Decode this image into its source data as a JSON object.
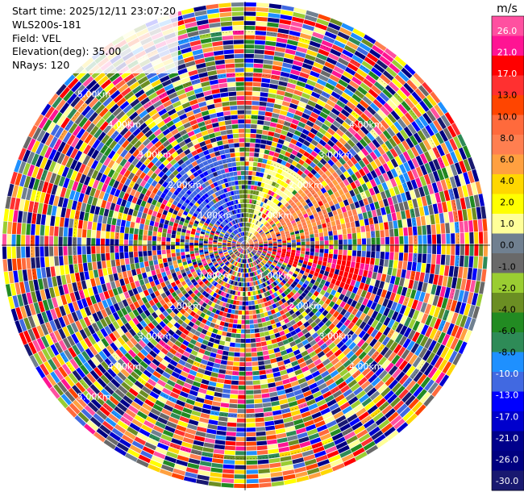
{
  "header": {
    "start_time": "Start time: 2025/12/11 23:07:20",
    "instrument": "WLS200s-181",
    "field": "Field: VEL",
    "elevation": "Elevation(deg): 35.00",
    "nrays": "NRays: 120"
  },
  "chart_data": {
    "type": "heatmap",
    "projection": "polar-ppi",
    "field": "VEL",
    "elevation_deg": 35.0,
    "nrays": 120,
    "range_rings": [
      {
        "label": "1.00km",
        "positions": [
          "upper-left",
          "upper-right",
          "lower-left",
          "lower-right"
        ]
      },
      {
        "label": "2.00km",
        "positions": [
          "upper-left",
          "upper-right",
          "lower-left",
          "lower-right"
        ]
      },
      {
        "label": "3.00km",
        "positions": [
          "upper-left",
          "upper-right",
          "lower-left",
          "lower-right"
        ]
      },
      {
        "label": "4.00km",
        "positions": [
          "upper-left",
          "upper-right",
          "lower-left",
          "lower-right"
        ]
      },
      {
        "label": "5.00km",
        "positions": [
          "upper-left",
          "lower-left"
        ]
      }
    ],
    "max_range_km": 5.7,
    "near_field_pattern": [
      {
        "azimuth_from_deg": 300,
        "azimuth_to_deg": 355,
        "max_range_km": 2.4,
        "velocity": -17
      },
      {
        "azimuth_from_deg": 355,
        "azimuth_to_deg": 15,
        "max_range_km": 1.3,
        "velocity": -6
      },
      {
        "azimuth_from_deg": 15,
        "azimuth_to_deg": 45,
        "max_range_km": 2.0,
        "velocity": 4
      },
      {
        "azimuth_from_deg": 45,
        "azimuth_to_deg": 85,
        "max_range_km": 2.7,
        "velocity": 13
      },
      {
        "azimuth_from_deg": 95,
        "azimuth_to_deg": 115,
        "max_range_km": 3.0,
        "velocity": 24
      }
    ],
    "colorbar": {
      "unit": "m/s",
      "ticks": [
        "26.0",
        "21.0",
        "17.0",
        "13.0",
        "10.0",
        "8.0",
        "6.0",
        "4.0",
        "2.0",
        "1.0",
        "0.0",
        "-1.0",
        "-2.0",
        "-4.0",
        "-6.0",
        "-8.0",
        "-10.0",
        "-13.0",
        "-17.0",
        "-21.0",
        "-26.0",
        "-30.0"
      ],
      "colors": [
        "#ff50a0",
        "#ff1493",
        "#ff0000",
        "#ff3030",
        "#ff4500",
        "#ff6a3c",
        "#ff7f50",
        "#ffa040",
        "#ffd700",
        "#ffff00",
        "#ffff99",
        "#708090",
        "#696969",
        "#9acd32",
        "#6b8e23",
        "#228b22",
        "#2e8b57",
        "#1e90ff",
        "#4169e1",
        "#0000ff",
        "#0000cd",
        "#00008b",
        "#000080",
        "#191970"
      ]
    }
  }
}
